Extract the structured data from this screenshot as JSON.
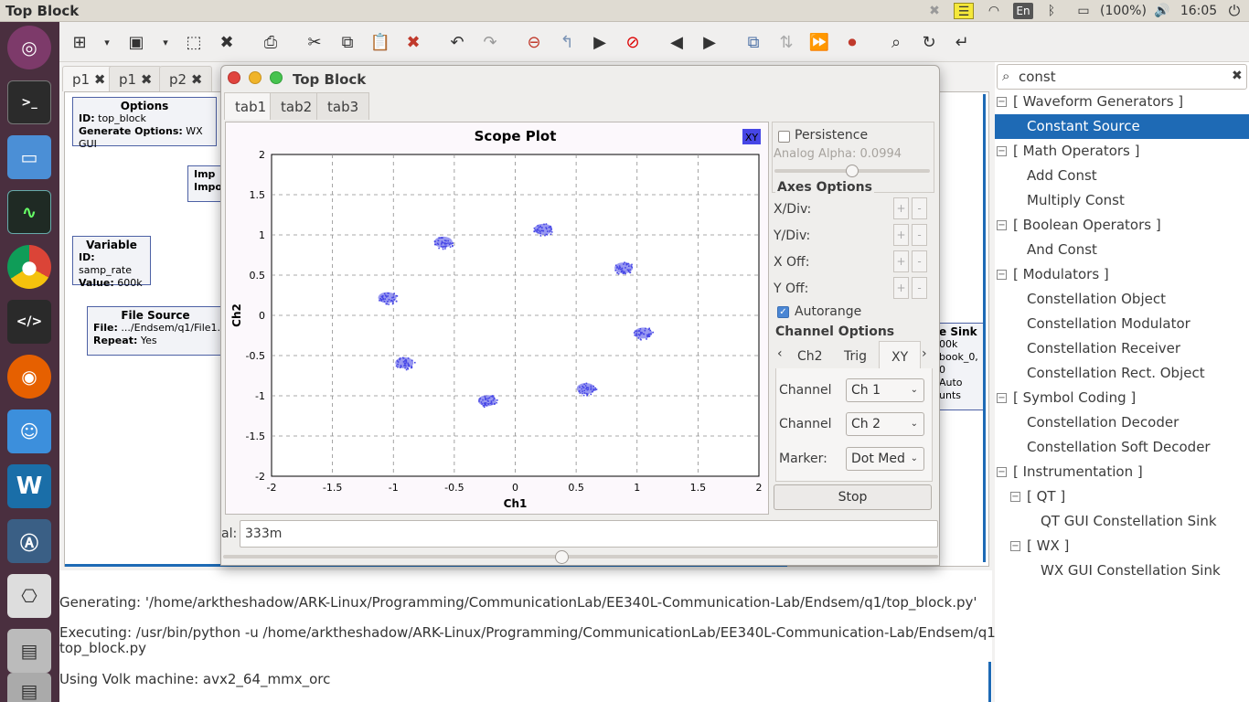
{
  "system": {
    "window_title": "Top Block",
    "battery": "(100%)",
    "time": "16:05",
    "keyboard": "En"
  },
  "editor": {
    "tabs": [
      {
        "label": "p1"
      },
      {
        "label": "p1"
      },
      {
        "label": "p2"
      }
    ],
    "blocks": {
      "options": {
        "title": "Options",
        "line1_key": "ID:",
        "line1_val": "top_block",
        "line2_key": "Generate Options:",
        "line2_val": "WX GUI"
      },
      "import": {
        "line1": "Imp",
        "line2": "Impo"
      },
      "variable": {
        "title": "Variable",
        "line1_key": "ID:",
        "line1_val": "samp_rate",
        "line2_key": "Value:",
        "line2_val": "600k"
      },
      "file_source": {
        "title": "File Source",
        "line1_key": "File:",
        "line1_val": ".../Endsem/q1/File1.dat",
        "line2_key": "Repeat:",
        "line2_val": "Yes"
      },
      "sink": {
        "title": "e Sink",
        "l1": "00k",
        "l2": "book_0, 0",
        "l3": "Auto",
        "l4": "unts"
      }
    }
  },
  "console": {
    "lines": [
      "Generating: '/home/arktheshadow/ARK-Linux/Programming/CommunicationLab/EE340L-Communication-Lab/Endsem/q1/top_block.py'",
      "Executing: /usr/bin/python -u /home/arktheshadow/ARK-Linux/Programming/CommunicationLab/EE340L-Communication-Lab/Endsem/q1/",
      "top_block.py",
      "Using Volk machine: avx2_64_mmx_orc"
    ]
  },
  "search": {
    "value": "const",
    "tree": [
      {
        "label": "[ Waveform Generators ]",
        "level": 0,
        "toggle": "−"
      },
      {
        "label": "Constant Source",
        "level": 1,
        "selected": true
      },
      {
        "label": "[ Math Operators ]",
        "level": 0,
        "toggle": "−"
      },
      {
        "label": "Add Const",
        "level": 1
      },
      {
        "label": "Multiply Const",
        "level": 1
      },
      {
        "label": "[ Boolean Operators ]",
        "level": 0,
        "toggle": "−"
      },
      {
        "label": "And Const",
        "level": 1
      },
      {
        "label": "[ Modulators ]",
        "level": 0,
        "toggle": "−"
      },
      {
        "label": "Constellation Object",
        "level": 1
      },
      {
        "label": "Constellation Modulator",
        "level": 1
      },
      {
        "label": "Constellation Receiver",
        "level": 1
      },
      {
        "label": "Constellation Rect. Object",
        "level": 1
      },
      {
        "label": "[ Symbol Coding ]",
        "level": 0,
        "toggle": "−"
      },
      {
        "label": "Constellation Decoder",
        "level": 1
      },
      {
        "label": "Constellation Soft Decoder",
        "level": 1
      },
      {
        "label": "[ Instrumentation ]",
        "level": 0,
        "toggle": "−"
      },
      {
        "label": "[ QT ]",
        "level": 1,
        "toggle": "−"
      },
      {
        "label": "QT GUI Constellation Sink",
        "level": 2
      },
      {
        "label": "[ WX ]",
        "level": 1,
        "toggle": "−"
      },
      {
        "label": "WX GUI Constellation Sink",
        "level": 2
      }
    ]
  },
  "scope_window": {
    "title": "Top Block",
    "tabs": [
      {
        "label": "tab1"
      },
      {
        "label": "tab2"
      },
      {
        "label": "tab3"
      }
    ],
    "persistence_label": "Persistence",
    "analog_alpha": "Analog Alpha: 0.0994",
    "axes_options": "Axes Options",
    "x_div": "X/Div:",
    "y_div": "Y/Div:",
    "x_off": "X Off:",
    "y_off": "Y Off:",
    "autorange": "Autorange",
    "channel_options": "Channel Options",
    "ch_tabs": [
      {
        "label": "Ch2"
      },
      {
        "label": "Trig"
      },
      {
        "label": "XY"
      }
    ],
    "channel_label_1": "Channel",
    "channel_value_1": "Ch 1",
    "channel_label_2": "Channel",
    "channel_value_2": "Ch 2",
    "marker_label": "Marker:",
    "marker_value": "Dot Med",
    "stop_label": "Stop",
    "plus": "+",
    "minus": "-",
    "xy_badge": "XY",
    "value_label": "al:",
    "value_field": "333m",
    "accent": "#4646e6"
  },
  "chart_data": {
    "type": "scatter",
    "title": "Scope Plot",
    "xlabel": "Ch1",
    "ylabel": "Ch2",
    "xlim": [
      -2,
      2
    ],
    "ylim": [
      -2,
      2
    ],
    "x_ticks": [
      "-2",
      "-1.5",
      "-1",
      "-0.5",
      "0",
      "0.5",
      "1",
      "1.5",
      "2"
    ],
    "y_ticks": [
      "2",
      "1.5",
      "1",
      "0.5",
      "0",
      "-0.5",
      "-1",
      "-1.5",
      "-2"
    ],
    "grid": true,
    "clusters": [
      {
        "x": -1.05,
        "y": 0.22
      },
      {
        "x": -0.59,
        "y": 0.91
      },
      {
        "x": 0.23,
        "y": 1.07
      },
      {
        "x": 0.89,
        "y": 0.59
      },
      {
        "x": 1.05,
        "y": -0.22
      },
      {
        "x": 0.58,
        "y": -0.91
      },
      {
        "x": -0.23,
        "y": -1.06
      },
      {
        "x": -0.91,
        "y": -0.59
      }
    ]
  }
}
